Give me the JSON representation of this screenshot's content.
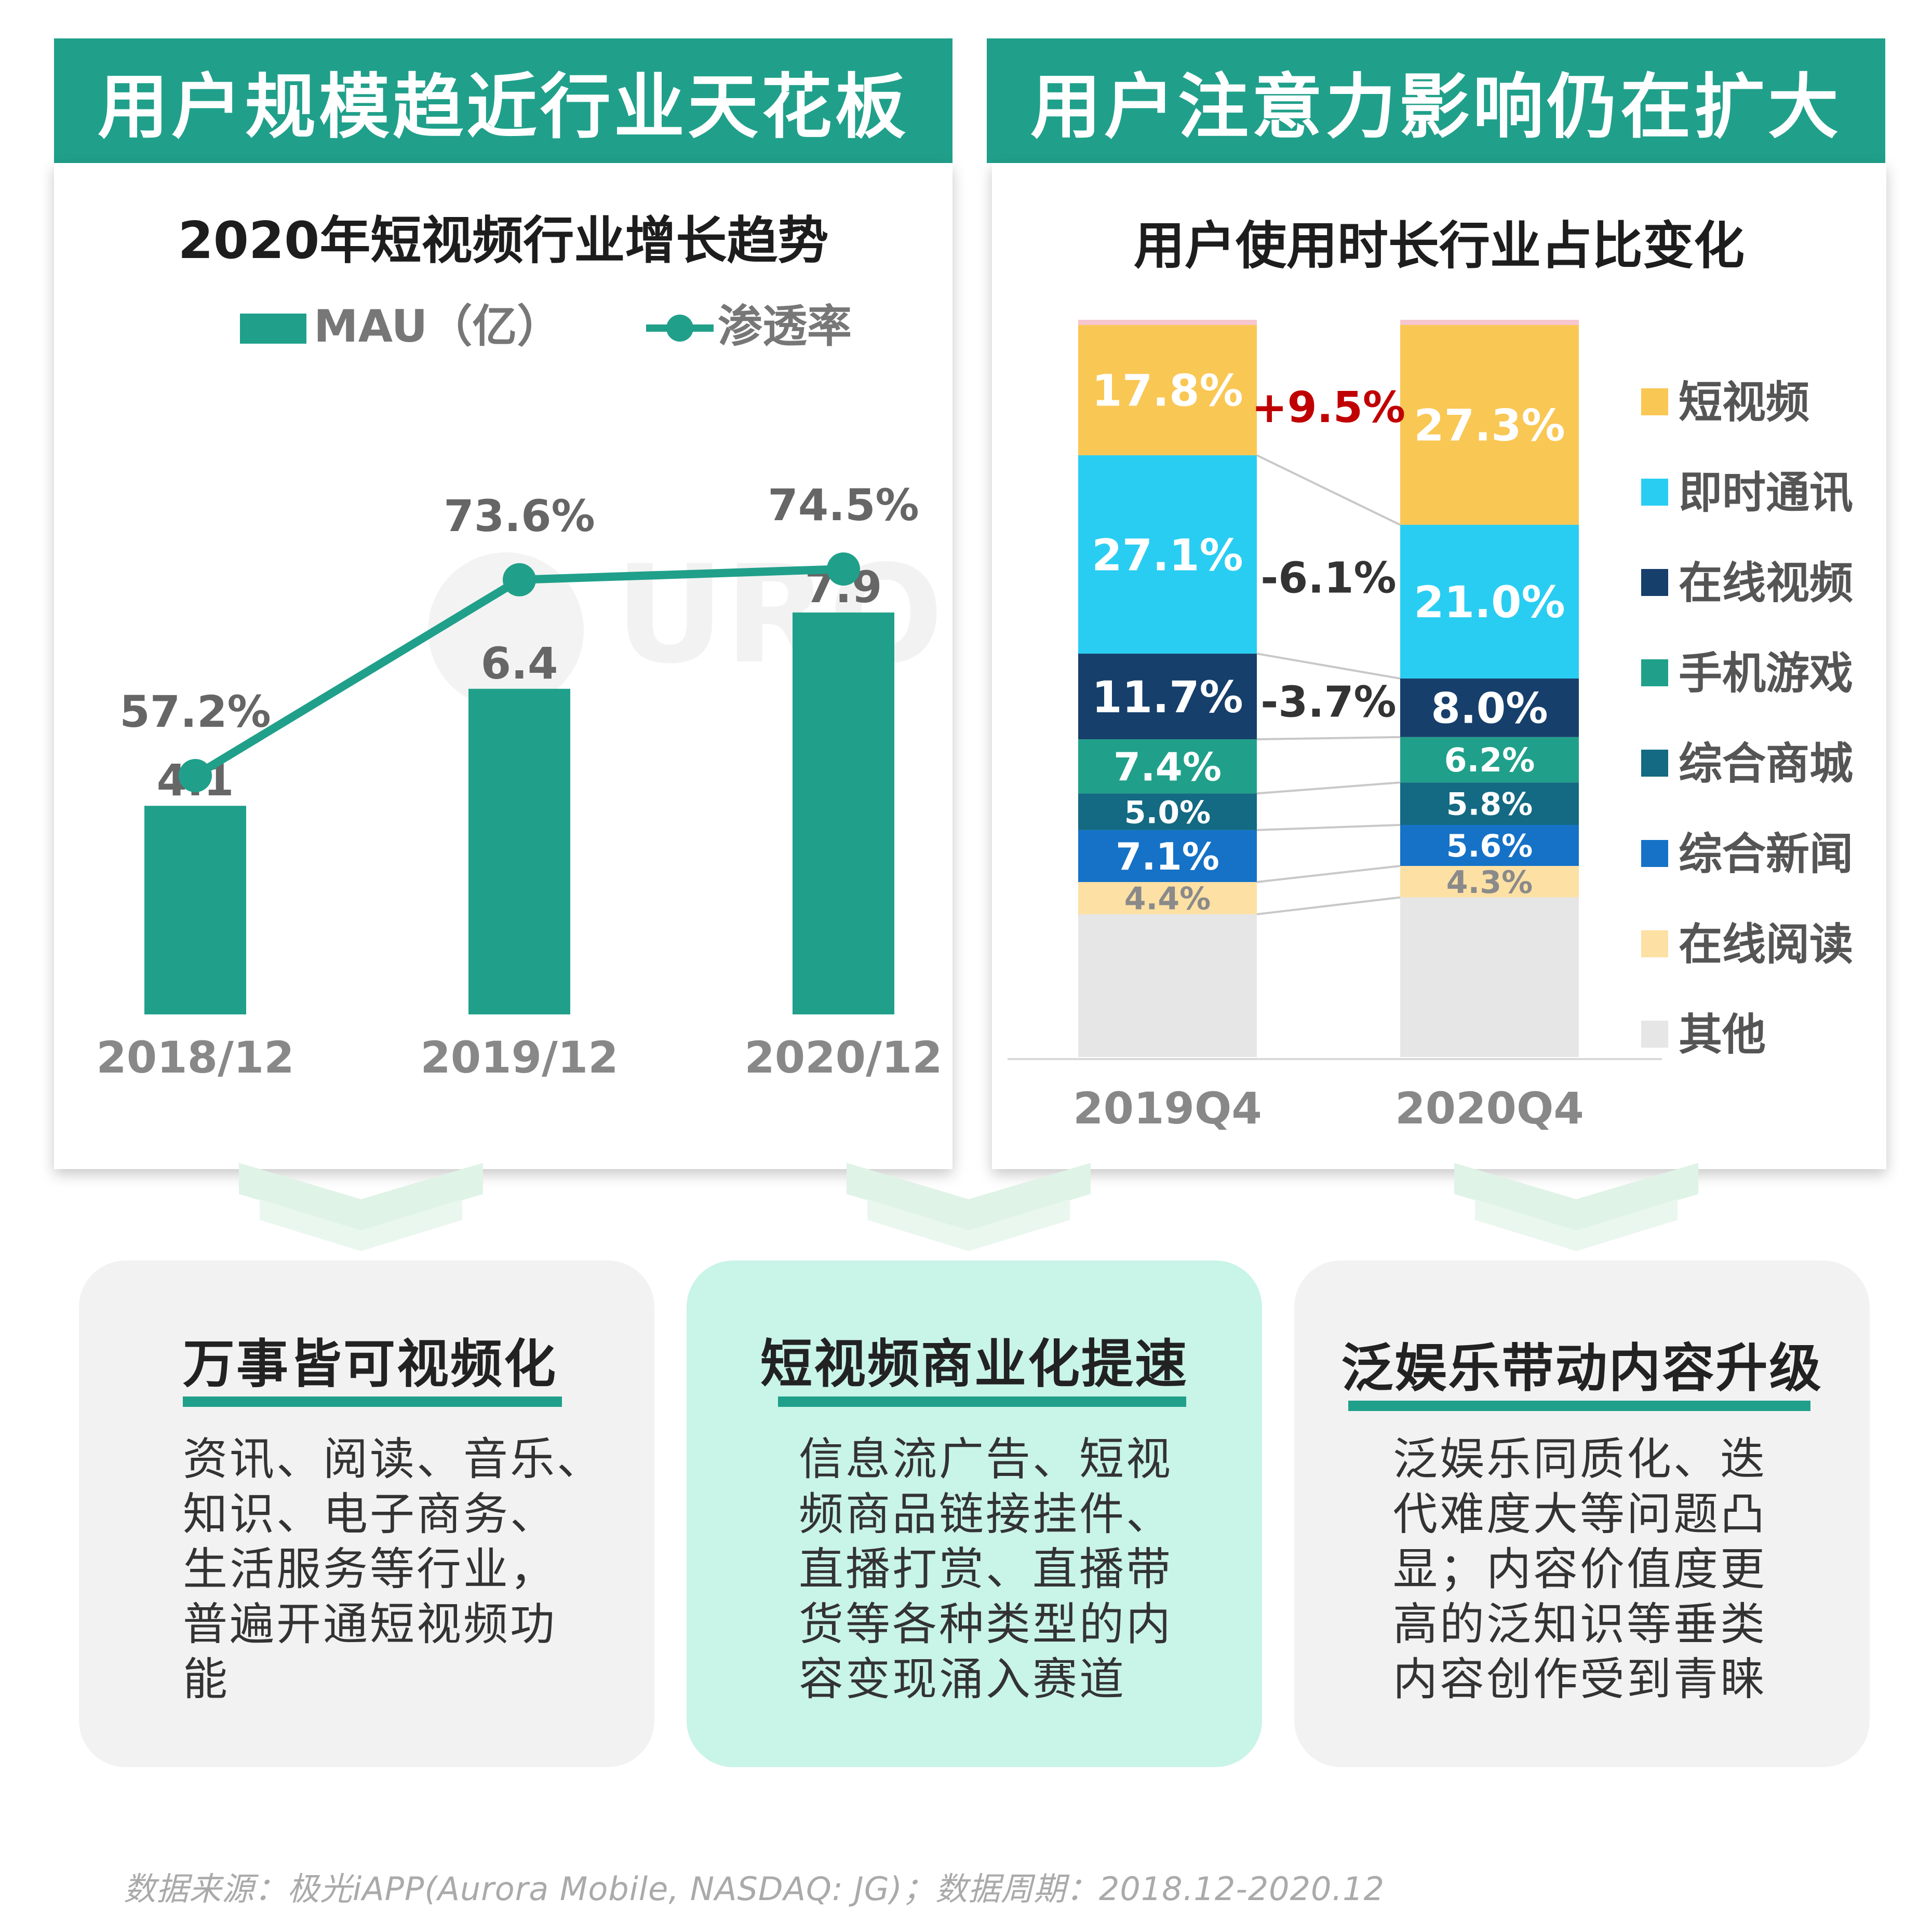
{
  "left": {
    "banner": "用户规模趋近行业天花板",
    "title": "2020年短视频行业增长趋势",
    "legend_bar": "MAU（亿）",
    "legend_line": "渗透率"
  },
  "right": {
    "banner": "用户注意力影响仍在扩大",
    "title": "用户使用时长行业占比变化"
  },
  "watermark": "URORA 极光",
  "colors": {
    "teal": "#20a08a",
    "short_video": "#f9c754",
    "instant_msg": "#29cdf2",
    "online_video": "#163f6b",
    "mobile_game": "#20a08a",
    "ecommerce": "#136a82",
    "news": "#1572c7",
    "reading": "#fde0a4",
    "other": "#e6e6e6",
    "positive_delta": "#c00000"
  },
  "chart_data": [
    {
      "type": "bar",
      "title": "2020年短视频行业增长趋势",
      "categories": [
        "2018/12",
        "2019/12",
        "2020/12"
      ],
      "series": [
        {
          "name": "MAU（亿）",
          "kind": "bar",
          "values": [
            4.1,
            6.4,
            7.9
          ],
          "labels": [
            "4.1",
            "6.4",
            "7.9"
          ]
        },
        {
          "name": "渗透率",
          "kind": "line",
          "values": [
            57.2,
            73.6,
            74.5
          ],
          "labels": [
            "57.2%",
            "73.6%",
            "74.5%"
          ]
        }
      ],
      "legend": "top"
    },
    {
      "type": "bar",
      "stacked": true,
      "title": "用户使用时长行业占比变化",
      "categories": [
        "2019Q4",
        "2020Q4"
      ],
      "series": [
        {
          "name": "短视频",
          "values": [
            17.8,
            27.3
          ],
          "labels": [
            "17.8%",
            "27.3%"
          ],
          "color": "#f9c754",
          "label_color": "#ffffff"
        },
        {
          "name": "即时通讯",
          "values": [
            27.1,
            21.0
          ],
          "labels": [
            "27.1%",
            "21.0%"
          ],
          "color": "#29cdf2",
          "label_color": "#ffffff"
        },
        {
          "name": "在线视频",
          "values": [
            11.7,
            8.0
          ],
          "labels": [
            "11.7%",
            "8.0%"
          ],
          "color": "#163f6b",
          "label_color": "#ffffff"
        },
        {
          "name": "手机游戏",
          "values": [
            7.4,
            6.2
          ],
          "labels": [
            "7.4%",
            "6.2%"
          ],
          "color": "#20a08a",
          "label_color": "#ffffff"
        },
        {
          "name": "综合商城",
          "values": [
            5.0,
            5.8
          ],
          "labels": [
            "5.0%",
            "5.8%"
          ],
          "color": "#136a82",
          "label_color": "#ffffff"
        },
        {
          "name": "综合新闻",
          "values": [
            7.1,
            5.6
          ],
          "labels": [
            "7.1%",
            "5.6%"
          ],
          "color": "#1572c7",
          "label_color": "#ffffff"
        },
        {
          "name": "在线阅读",
          "values": [
            4.4,
            4.3
          ],
          "labels": [
            "4.4%",
            "4.3%"
          ],
          "color": "#fde0a4",
          "label_color": "#8a8a8a"
        },
        {
          "name": "其他",
          "values": [
            19.5,
            21.8
          ],
          "labels": [
            "",
            ""
          ],
          "color": "#e6e6e6",
          "label_color": "#8a8a8a"
        }
      ],
      "annotations": [
        {
          "text": "+9.5%",
          "series": "短视频",
          "color": "#c00000"
        },
        {
          "text": "-6.1%",
          "series": "即时通讯",
          "color": "#333333"
        },
        {
          "text": "-3.7%",
          "series": "在线视频",
          "color": "#333333"
        }
      ],
      "legend": "right"
    }
  ],
  "cards": [
    {
      "title": "万事皆可视频化",
      "lines": [
        "资讯、阅读、音乐、",
        "知识、电子商务、",
        "生活服务等行业，",
        "普遍开通短视频功",
        "能"
      ]
    },
    {
      "title": "短视频商业化提速",
      "lines": [
        "信息流广告、短视",
        "频商品链接挂件、",
        "直播打赏、直播带",
        "货等各种类型的内",
        "容变现涌入赛道"
      ]
    },
    {
      "title": "泛娱乐带动内容升级",
      "lines": [
        "泛娱乐同质化、迭",
        "代难度大等问题凸",
        "显；内容价值度更",
        "高的泛知识等垂类",
        "内容创作受到青睐"
      ]
    }
  ],
  "footer": "数据来源：极光iAPP(Aurora Mobile, NASDAQ: JG)；数据周期：2018.12-2020.12"
}
